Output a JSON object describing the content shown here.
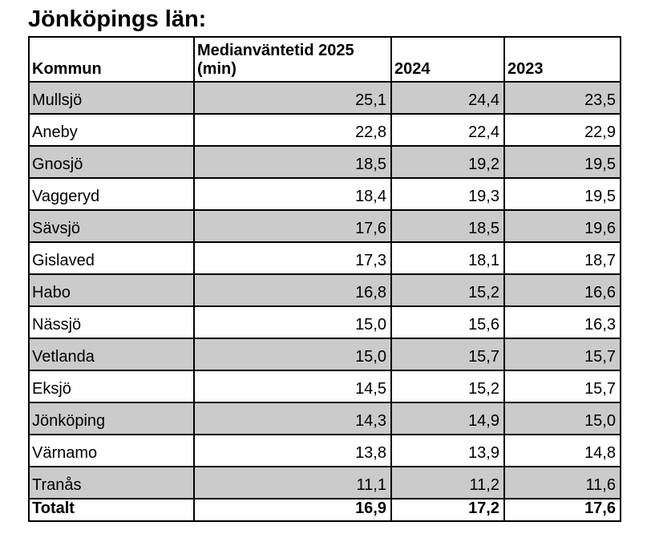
{
  "title": "Jönköpings län:",
  "colors": {
    "row_shade": "#cbcbcb",
    "border": "#000000",
    "background": "#ffffff",
    "text": "#000000"
  },
  "table": {
    "columns": [
      "Kommun",
      "Medianväntetid 2025 (min)",
      "2024",
      "2023"
    ],
    "rows": [
      {
        "kommun": "Mullsjö",
        "v2025": "25,1",
        "v2024": "24,4",
        "v2023": "23,5",
        "shaded": true
      },
      {
        "kommun": "Aneby",
        "v2025": "22,8",
        "v2024": "22,4",
        "v2023": "22,9",
        "shaded": false
      },
      {
        "kommun": "Gnosjö",
        "v2025": "18,5",
        "v2024": "19,2",
        "v2023": "19,5",
        "shaded": true
      },
      {
        "kommun": "Vaggeryd",
        "v2025": "18,4",
        "v2024": "19,3",
        "v2023": "19,5",
        "shaded": false
      },
      {
        "kommun": "Sävsjö",
        "v2025": "17,6",
        "v2024": "18,5",
        "v2023": "19,6",
        "shaded": true
      },
      {
        "kommun": "Gislaved",
        "v2025": "17,3",
        "v2024": "18,1",
        "v2023": "18,7",
        "shaded": false
      },
      {
        "kommun": "Habo",
        "v2025": "16,8",
        "v2024": "15,2",
        "v2023": "16,6",
        "shaded": true
      },
      {
        "kommun": "Nässjö",
        "v2025": "15,0",
        "v2024": "15,6",
        "v2023": "16,3",
        "shaded": false
      },
      {
        "kommun": "Vetlanda",
        "v2025": "15,0",
        "v2024": "15,7",
        "v2023": "15,7",
        "shaded": true
      },
      {
        "kommun": "Eksjö",
        "v2025": "14,5",
        "v2024": "15,2",
        "v2023": "15,7",
        "shaded": false
      },
      {
        "kommun": "Jönköping",
        "v2025": "14,3",
        "v2024": "14,9",
        "v2023": "15,0",
        "shaded": true
      },
      {
        "kommun": "Värnamo",
        "v2025": "13,8",
        "v2024": "13,9",
        "v2023": "14,8",
        "shaded": false
      },
      {
        "kommun": "Tranås",
        "v2025": "11,1",
        "v2024": "11,2",
        "v2023": "11,6",
        "shaded": true
      }
    ],
    "total": {
      "kommun": "Totalt",
      "v2025": "16,9",
      "v2024": "17,2",
      "v2023": "17,6"
    }
  }
}
